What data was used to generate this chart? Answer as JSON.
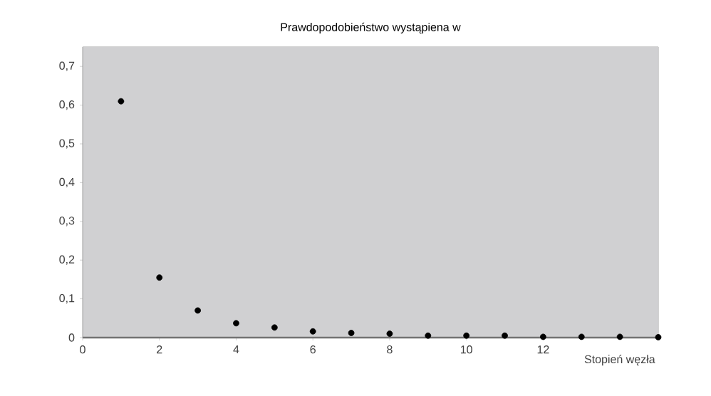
{
  "chart_data": {
    "type": "scatter",
    "title": "Prawdopodobieństwo wystąpiena w",
    "xlabel": "Stopień węzła",
    "x": [
      1,
      2,
      3,
      4,
      5,
      6,
      7,
      8,
      9,
      10,
      11,
      12,
      13,
      14,
      15
    ],
    "values": [
      0.61,
      0.155,
      0.07,
      0.037,
      0.026,
      0.016,
      0.012,
      0.01,
      0.005,
      0.005,
      0.005,
      0.002,
      0.002,
      0.002,
      0.001
    ],
    "color": "#000000",
    "marker": "circle",
    "xlim": [
      0,
      15
    ],
    "xticks": [
      0,
      2,
      4,
      6,
      8,
      10,
      12
    ],
    "ylim": [
      0,
      0.75
    ],
    "yticks": [
      {
        "value": 0,
        "label": "0"
      },
      {
        "value": 0.1,
        "label": "0,1"
      },
      {
        "value": 0.2,
        "label": "0,2"
      },
      {
        "value": 0.3,
        "label": "0,3"
      },
      {
        "value": 0.4,
        "label": "0,4"
      },
      {
        "value": 0.5,
        "label": "0,5"
      },
      {
        "value": 0.6,
        "label": "0,6"
      },
      {
        "value": 0.7,
        "label": "0,7"
      }
    ],
    "grid": false
  }
}
